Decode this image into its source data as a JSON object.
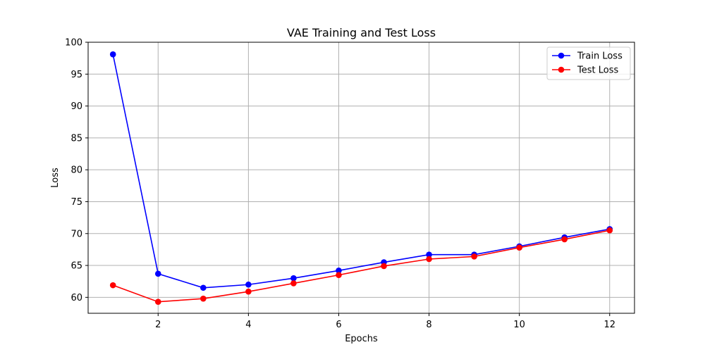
{
  "chart_data": {
    "type": "line",
    "title": "VAE Training and Test Loss",
    "xlabel": "Epochs",
    "ylabel": "Loss",
    "xlim": [
      0.45,
      12.55
    ],
    "ylim": [
      57.5,
      100
    ],
    "xticks": [
      2,
      4,
      6,
      8,
      10,
      12
    ],
    "yticks": [
      60,
      65,
      70,
      75,
      80,
      85,
      90,
      95,
      100
    ],
    "grid": true,
    "legend_position": "top-right",
    "x": [
      1,
      2,
      3,
      4,
      5,
      6,
      7,
      8,
      9,
      10,
      11,
      12
    ],
    "series": [
      {
        "name": "Train Loss",
        "color": "#0000ff",
        "marker": "circle",
        "values": [
          98.1,
          63.7,
          61.5,
          62.0,
          63.0,
          64.2,
          65.5,
          66.7,
          66.7,
          68.0,
          69.4,
          70.7
        ]
      },
      {
        "name": "Test Loss",
        "color": "#ff0000",
        "marker": "circle",
        "values": [
          61.9,
          59.3,
          59.8,
          60.9,
          62.2,
          63.5,
          64.9,
          66.0,
          66.4,
          67.8,
          69.1,
          70.5
        ]
      }
    ]
  }
}
